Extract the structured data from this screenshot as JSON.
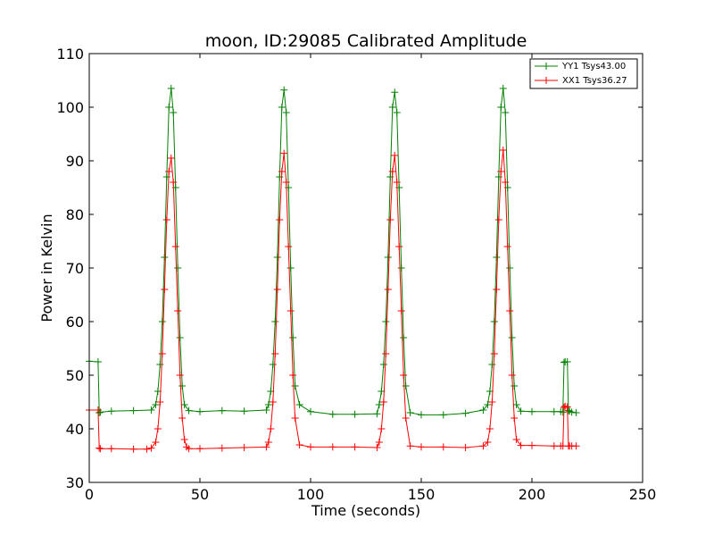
{
  "chart_data": {
    "type": "line",
    "title": "moon, ID:29085 Calibrated Amplitude",
    "xlabel": "Time (seconds)",
    "ylabel": "Power in Kelvin",
    "xlim": [
      0,
      250
    ],
    "ylim": [
      30,
      110
    ],
    "xticks": [
      0,
      50,
      100,
      150,
      200,
      250
    ],
    "yticks": [
      30,
      40,
      50,
      60,
      70,
      80,
      90,
      100,
      110
    ],
    "grid": false,
    "legend_position": "top-right",
    "marker": "+",
    "series": [
      {
        "name": "YY1 Tsys43.00",
        "color": "#008000",
        "x": [
          0,
          4,
          4.5,
          5,
          10,
          20,
          28,
          30,
          31,
          32,
          33,
          34,
          35,
          36,
          37,
          38,
          39,
          40,
          41,
          42,
          43,
          45,
          50,
          60,
          70,
          80,
          81,
          82,
          83,
          84,
          85,
          86,
          87,
          88,
          89,
          90,
          91,
          92,
          93,
          95,
          100,
          110,
          120,
          130,
          131,
          132,
          133,
          134,
          135,
          136,
          137,
          138,
          139,
          140,
          141,
          142,
          143,
          145,
          150,
          160,
          170,
          178,
          180,
          181,
          182,
          183,
          184,
          185,
          186,
          187,
          188,
          189,
          190,
          191,
          192,
          193,
          195,
          200,
          210,
          213,
          214,
          214.5,
          215,
          216,
          216.5,
          217,
          218,
          220
        ],
        "y": [
          52.6,
          52.5,
          43.0,
          43.1,
          43.3,
          43.4,
          43.5,
          44.5,
          47,
          52,
          60,
          72,
          87,
          100,
          103.5,
          99,
          85,
          70,
          57,
          48,
          44.5,
          43.4,
          43.2,
          43.4,
          43.3,
          43.5,
          44.5,
          47,
          52,
          60,
          72,
          87,
          100,
          103.2,
          99,
          85,
          70,
          57,
          48,
          44.5,
          43.2,
          42.7,
          42.7,
          42.8,
          44.5,
          47,
          52,
          60,
          72,
          87,
          100,
          102.8,
          99,
          85,
          70,
          57,
          48,
          43.0,
          42.6,
          42.6,
          42.9,
          43.5,
          44.5,
          47,
          52,
          60,
          72,
          87,
          100,
          103.5,
          99,
          85,
          70,
          57,
          48,
          44.5,
          43.3,
          43.2,
          43.2,
          43.2,
          43.1,
          52.4,
          52.5,
          52.5,
          43.4,
          43.3,
          43.1,
          43.0
        ]
      },
      {
        "name": "XX1 Tsys36.27",
        "color": "#ff0000",
        "x": [
          0,
          4,
          4.5,
          5,
          10,
          20,
          26,
          28,
          30,
          31,
          32,
          33,
          34,
          35,
          36,
          37,
          38,
          39,
          40,
          41,
          42,
          43,
          44,
          45,
          50,
          60,
          70,
          80,
          81,
          82,
          83,
          84,
          85,
          86,
          87,
          88,
          89,
          90,
          91,
          92,
          93,
          95,
          100,
          110,
          120,
          130,
          131,
          132,
          133,
          134,
          135,
          136,
          137,
          138,
          139,
          140,
          141,
          142,
          143,
          145,
          150,
          160,
          170,
          178,
          180,
          181,
          182,
          183,
          184,
          185,
          186,
          187,
          188,
          189,
          190,
          191,
          192,
          193,
          195,
          200,
          210,
          213,
          214,
          214.5,
          215,
          216,
          216.5,
          217,
          218,
          220
        ],
        "y": [
          43.5,
          43.5,
          36.4,
          36.3,
          36.3,
          36.2,
          36.2,
          36.4,
          37.5,
          40,
          45,
          54,
          66,
          79,
          88,
          90.5,
          86,
          74,
          62,
          50,
          42,
          38,
          36.6,
          36.3,
          36.3,
          36.4,
          36.5,
          36.6,
          37.5,
          40,
          45,
          54,
          66,
          79,
          88,
          91.4,
          86,
          74,
          62,
          50,
          42,
          37,
          36.6,
          36.6,
          36.6,
          36.5,
          37.5,
          40,
          45,
          54,
          66,
          79,
          88,
          91.0,
          86,
          74,
          62,
          50,
          42,
          36.8,
          36.6,
          36.6,
          36.5,
          36.8,
          37.5,
          40,
          45,
          54,
          66,
          79,
          88,
          92.0,
          86,
          74,
          62,
          50,
          42,
          38,
          36.9,
          36.9,
          36.8,
          36.8,
          36.8,
          44.0,
          44.2,
          44.1,
          36.8,
          36.8,
          36.8,
          36.8
        ]
      }
    ]
  }
}
